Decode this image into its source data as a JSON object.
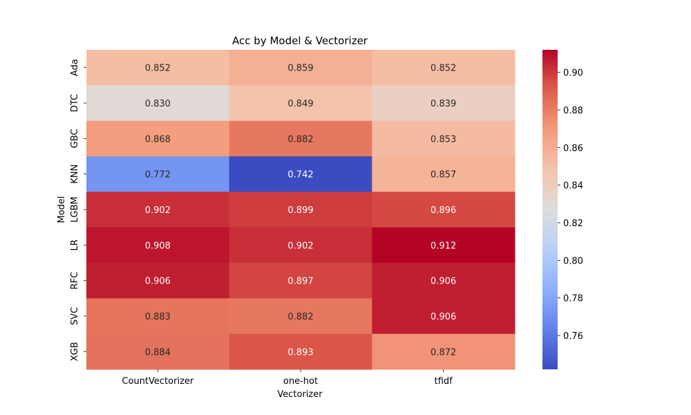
{
  "chart_data": {
    "type": "heatmap",
    "title": "Acc by Model & Vectorizer",
    "xlabel": "Vectorizer",
    "ylabel": "Model",
    "x_categories": [
      "CountVectorizer",
      "one-hot",
      "tfidf"
    ],
    "y_categories": [
      "Ada",
      "DTC",
      "GBC",
      "KNN",
      "LGBM",
      "LR",
      "RFC",
      "SVC",
      "XGB"
    ],
    "values": [
      [
        0.852,
        0.859,
        0.852
      ],
      [
        0.83,
        0.849,
        0.839
      ],
      [
        0.868,
        0.882,
        0.853
      ],
      [
        0.772,
        0.742,
        0.857
      ],
      [
        0.902,
        0.899,
        0.896
      ],
      [
        0.908,
        0.902,
        0.912
      ],
      [
        0.906,
        0.897,
        0.906
      ],
      [
        0.883,
        0.882,
        0.906
      ],
      [
        0.884,
        0.893,
        0.872
      ]
    ],
    "value_format": "3 decimals",
    "colormap": "coolwarm",
    "color_range": [
      0.742,
      0.912
    ],
    "colorbar_ticks": [
      0.76,
      0.78,
      0.8,
      0.82,
      0.84,
      0.86,
      0.88,
      0.9
    ],
    "colorbar_position": "right"
  }
}
